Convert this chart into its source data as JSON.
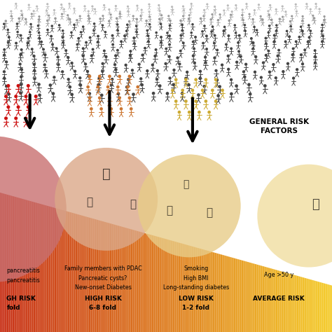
{
  "background_color": "#ffffff",
  "person_colors_red": "#cc1111",
  "person_colors_orange": "#cc7733",
  "person_colors_yellow": "#ccaa33",
  "person_colors_dark": "#444444",
  "person_colors_light": "#999999",
  "person_colors_lighter": "#bbbbbb",
  "circle1_color": "#c87070",
  "circle2_color": "#dba888",
  "circle3_color": "#e8cc88",
  "circle4_color": "#f0dc9a",
  "general_risk_label": "GENERAL RISK\nFACTORS",
  "risk_labels": [
    "GH RISK\nfold",
    "HIGH RISK\n6-8 fold",
    "LOW RISK\n1-2 fold",
    "AVERAGE RISK"
  ],
  "col1_text": [
    "pancreatitis",
    "pancreatitis"
  ],
  "col2_text": [
    "Family members with PDAC",
    "Pancreatic cysts?",
    "New-onset Diabetes"
  ],
  "col3_text": [
    "Smoking",
    "High BMI",
    "Long-standing diabetes"
  ],
  "col4_text": [
    "Age >50 y"
  ]
}
